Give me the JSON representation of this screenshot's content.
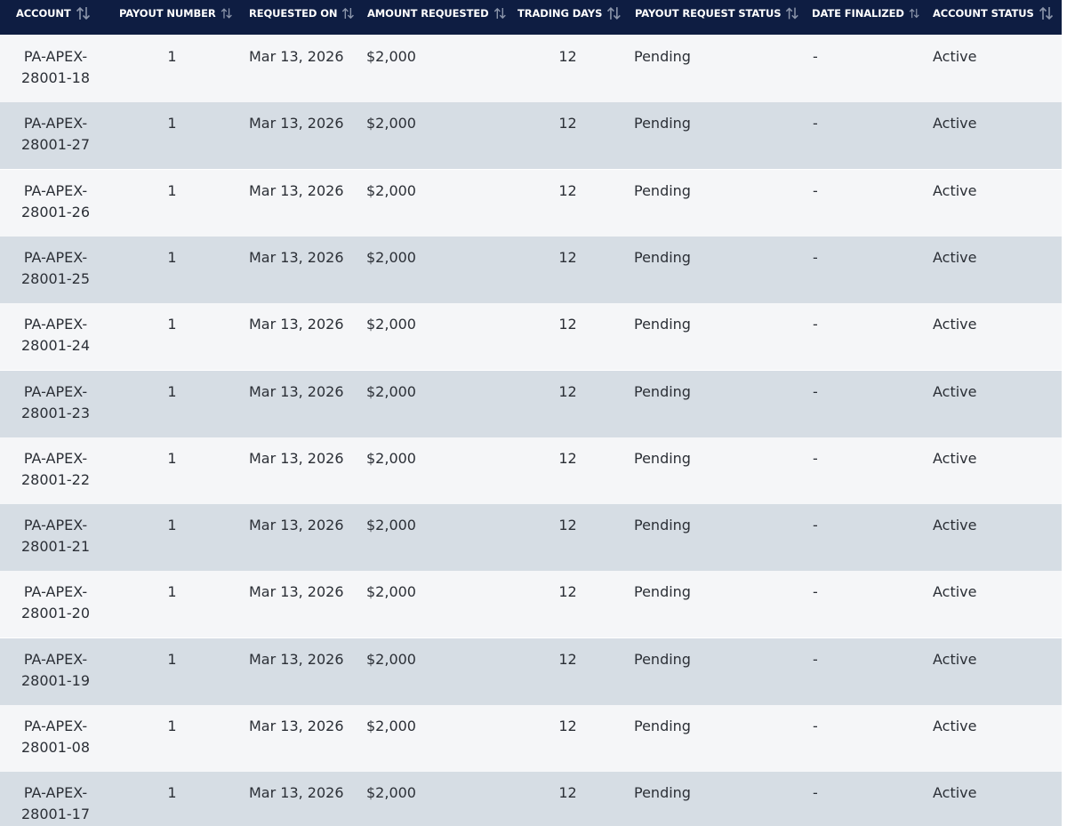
{
  "table": {
    "columns": [
      "ACCOUNT",
      "PAYOUT NUMBER",
      "REQUESTED ON",
      "AMOUNT REQUESTED",
      "TRADING DAYS",
      "PAYOUT REQUEST STATUS",
      "DATE FINALIZED",
      "ACCOUNT STATUS"
    ],
    "rows": [
      [
        "PA-APEX-28001-18",
        "1",
        "Mar 13, 2026",
        "$2,000",
        "12",
        "Pending",
        "-",
        "Active"
      ],
      [
        "PA-APEX-28001-27",
        "1",
        "Mar 13, 2026",
        "$2,000",
        "12",
        "Pending",
        "-",
        "Active"
      ],
      [
        "PA-APEX-28001-26",
        "1",
        "Mar 13, 2026",
        "$2,000",
        "12",
        "Pending",
        "-",
        "Active"
      ],
      [
        "PA-APEX-28001-25",
        "1",
        "Mar 13, 2026",
        "$2,000",
        "12",
        "Pending",
        "-",
        "Active"
      ],
      [
        "PA-APEX-28001-24",
        "1",
        "Mar 13, 2026",
        "$2,000",
        "12",
        "Pending",
        "-",
        "Active"
      ],
      [
        "PA-APEX-28001-23",
        "1",
        "Mar 13, 2026",
        "$2,000",
        "12",
        "Pending",
        "-",
        "Active"
      ],
      [
        "PA-APEX-28001-22",
        "1",
        "Mar 13, 2026",
        "$2,000",
        "12",
        "Pending",
        "-",
        "Active"
      ],
      [
        "PA-APEX-28001-21",
        "1",
        "Mar 13, 2026",
        "$2,000",
        "12",
        "Pending",
        "-",
        "Active"
      ],
      [
        "PA-APEX-28001-20",
        "1",
        "Mar 13, 2026",
        "$2,000",
        "12",
        "Pending",
        "-",
        "Active"
      ],
      [
        "PA-APEX-28001-19",
        "1",
        "Mar 13, 2026",
        "$2,000",
        "12",
        "Pending",
        "-",
        "Active"
      ],
      [
        "PA-APEX-28001-08",
        "1",
        "Mar 13, 2026",
        "$2,000",
        "12",
        "Pending",
        "-",
        "Active"
      ],
      [
        "PA-APEX-28001-17",
        "1",
        "Mar 13, 2026",
        "$2,000",
        "12",
        "Pending",
        "-",
        "Active"
      ]
    ]
  }
}
